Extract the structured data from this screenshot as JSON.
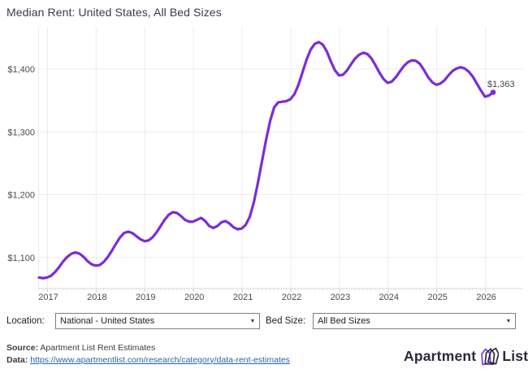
{
  "title": "Median Rent: United States, All Bed Sizes",
  "chart_data": {
    "type": "line",
    "title": "Median Rent: United States, All Bed Sizes",
    "series_name": "Median rent, USD (monthly)",
    "frequency": "monthly",
    "start_month": "2016-11",
    "end_month": "2026-03",
    "values": [
      1068,
      1067,
      1068,
      1071,
      1077,
      1085,
      1094,
      1101,
      1106,
      1108,
      1106,
      1101,
      1094,
      1089,
      1087,
      1088,
      1093,
      1101,
      1111,
      1122,
      1132,
      1139,
      1141,
      1139,
      1134,
      1129,
      1126,
      1127,
      1132,
      1140,
      1150,
      1160,
      1168,
      1172,
      1171,
      1166,
      1160,
      1157,
      1157,
      1160,
      1163,
      1158,
      1150,
      1147,
      1150,
      1156,
      1158,
      1154,
      1148,
      1145,
      1146,
      1152,
      1165,
      1188,
      1219,
      1253,
      1287,
      1317,
      1339,
      1347,
      1348,
      1349,
      1352,
      1360,
      1375,
      1395,
      1415,
      1431,
      1440,
      1443,
      1439,
      1428,
      1412,
      1398,
      1390,
      1391,
      1398,
      1408,
      1417,
      1423,
      1426,
      1424,
      1417,
      1406,
      1394,
      1384,
      1378,
      1380,
      1387,
      1396,
      1405,
      1411,
      1414,
      1413,
      1408,
      1398,
      1387,
      1379,
      1375,
      1377,
      1382,
      1390,
      1397,
      1401,
      1403,
      1401,
      1396,
      1388,
      1377,
      1366,
      1356,
      1358,
      1363
    ],
    "x_tick_labels": [
      "2017",
      "2018",
      "2019",
      "2020",
      "2021",
      "2022",
      "2023",
      "2024",
      "2025",
      "2026"
    ],
    "y_ticks": [
      {
        "value": 1100,
        "label": "$1,100"
      },
      {
        "value": 1200,
        "label": "$1,200"
      },
      {
        "value": 1300,
        "label": "$1,300"
      },
      {
        "value": 1400,
        "label": "$1,400"
      }
    ],
    "ylim": [
      1050,
      1470
    ],
    "grid": true,
    "legend": "none",
    "line_color": "#7c2bd9",
    "end_point_label": "$1,363",
    "end_point_value": 1363
  },
  "controls": {
    "location_label": "Location:",
    "location_value": "National - United States",
    "bed_size_label": "Bed Size:",
    "bed_size_value": "All Bed Sizes"
  },
  "footer": {
    "source_label": "Source:",
    "source_text": " Apartment List Rent Estimates",
    "data_label": "Data:",
    "data_link": "https://www.apartmentlist.com/research/category/data-rent-estimates",
    "logo_text_left": "Apartment",
    "logo_text_right": "List"
  },
  "colors": {
    "line": "#7c2bd9",
    "grid": "#ececec",
    "axis": "#d9d9d9",
    "tick_label": "#4b4b4b",
    "annotation": "#474752",
    "link": "#2864ae",
    "logo_navy": "#2c2841",
    "logo_purple": "#7c3aed"
  }
}
